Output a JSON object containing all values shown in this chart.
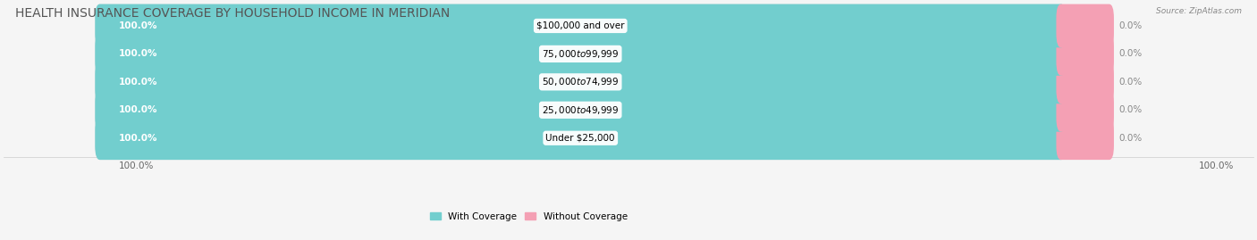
{
  "title": "HEALTH INSURANCE COVERAGE BY HOUSEHOLD INCOME IN MERIDIAN",
  "source": "Source: ZipAtlas.com",
  "categories": [
    "Under $25,000",
    "$25,000 to $49,999",
    "$50,000 to $74,999",
    "$75,000 to $99,999",
    "$100,000 and over"
  ],
  "with_coverage": [
    100.0,
    100.0,
    100.0,
    100.0,
    100.0
  ],
  "without_coverage": [
    0.0,
    0.0,
    0.0,
    0.0,
    0.0
  ],
  "color_with": "#72cece",
  "color_without": "#f4a0b4",
  "label_with": "With Coverage",
  "label_without": "Without Coverage",
  "background_color": "#f5f5f5",
  "bar_background": "#e0e0e0",
  "title_fontsize": 10,
  "tick_fontsize": 7.5,
  "bar_height": 0.55,
  "bottom_left_label": "100.0%",
  "bottom_right_label": "100.0%"
}
